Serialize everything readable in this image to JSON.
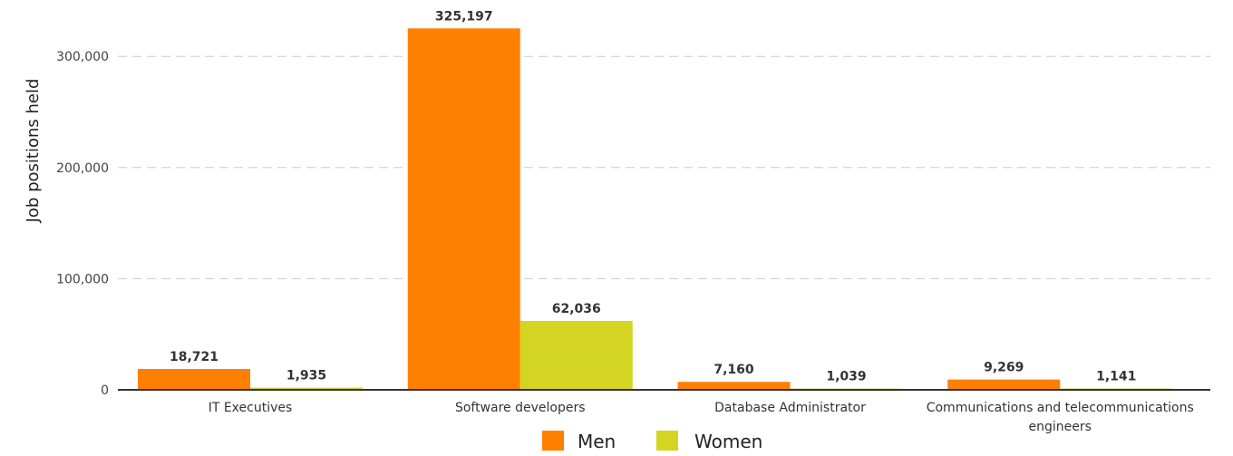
{
  "chart_data": {
    "type": "bar",
    "title": "",
    "xlabel": "",
    "ylabel": "Job positions held",
    "ylim": [
      0,
      340000
    ],
    "yticks": [
      0,
      100000,
      200000,
      300000
    ],
    "ytick_labels": [
      "0",
      "100,000",
      "200,000",
      "300,000"
    ],
    "grid": true,
    "legend_position": "bottom-center",
    "categories": [
      [
        "IT Executives"
      ],
      [
        "Software developers"
      ],
      [
        "Database Administrator"
      ],
      [
        "Communications and telecommunications",
        "engineers"
      ]
    ],
    "series": [
      {
        "name": "Men",
        "color": "#ff8000",
        "values": [
          18721,
          325197,
          7160,
          9269
        ],
        "labels": [
          "18,721",
          "325,197",
          "7,160",
          "9,269"
        ]
      },
      {
        "name": "Women",
        "color": "#d4d422",
        "values": [
          1935,
          62036,
          1039,
          1141
        ],
        "labels": [
          "1,935",
          "62,036",
          "1,039",
          "1,141"
        ]
      }
    ]
  }
}
